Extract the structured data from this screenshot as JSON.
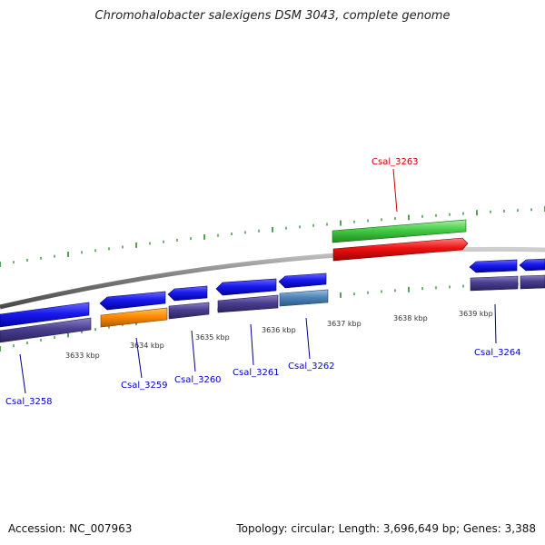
{
  "title": "Chromohalobacter salexigens DSM 3043, complete genome",
  "footer": {
    "accession": "Accession: NC_007963",
    "summary": "Topology: circular; Length: 3,696,649 bp; Genes: 3,388"
  },
  "scale_labels": [
    "3633 kbp",
    "3634 kbp",
    "3635 kbp",
    "3636 kbp",
    "3637 kbp",
    "3638 kbp",
    "3639 kbp"
  ],
  "genes": [
    {
      "name": "Csal_3258",
      "color": "#0000cc"
    },
    {
      "name": "Csal_3259",
      "color": "#0000cc"
    },
    {
      "name": "Csal_3260",
      "color": "#0000cc"
    },
    {
      "name": "Csal_3261",
      "color": "#0000cc"
    },
    {
      "name": "Csal_3262",
      "color": "#0000cc"
    },
    {
      "name": "Csal_3263",
      "color": "#cc0000"
    },
    {
      "name": "Csal_3264",
      "color": "#0000cc"
    }
  ],
  "colors": {
    "cds_blue": "#1a1aee",
    "gene_purple": "#4a3f8f",
    "trna_orange": "#ff8c00",
    "rna_steel": "#4f86b8",
    "rrna_green": "#44cc44",
    "rrna_red": "#ee1111",
    "tick_green": "#2a8a2a",
    "backbone": "#888888"
  }
}
